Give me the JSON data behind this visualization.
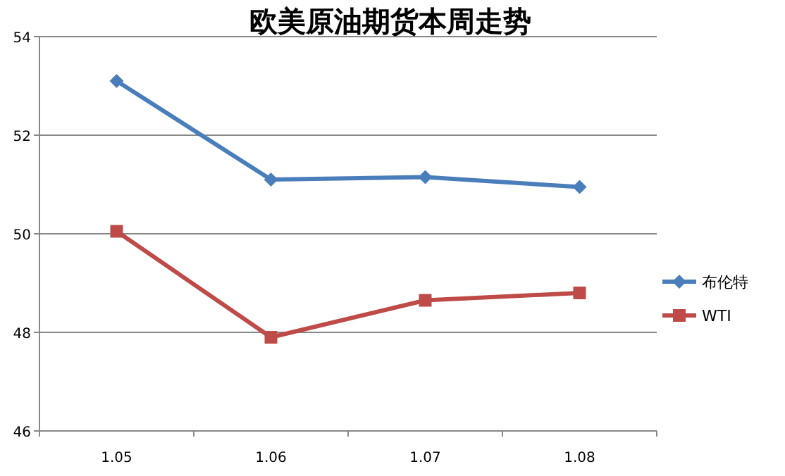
{
  "chart_data": {
    "type": "line",
    "title": "欧美原油期货本周走势",
    "categories": [
      "1.05",
      "1.06",
      "1.07",
      "1.08"
    ],
    "ylim": [
      46,
      54
    ],
    "yticks": [
      46,
      48,
      50,
      52,
      54
    ],
    "grid": "y",
    "legend": "right",
    "line_style": "solid",
    "series": [
      {
        "name": "布伦特",
        "color": "#4a7ebb",
        "marker": "diamond",
        "values": [
          53.1,
          51.1,
          51.15,
          50.95
        ]
      },
      {
        "name": "WTI",
        "color": "#be4b48",
        "marker": "square",
        "values": [
          50.05,
          47.9,
          48.65,
          48.8
        ]
      }
    ]
  }
}
